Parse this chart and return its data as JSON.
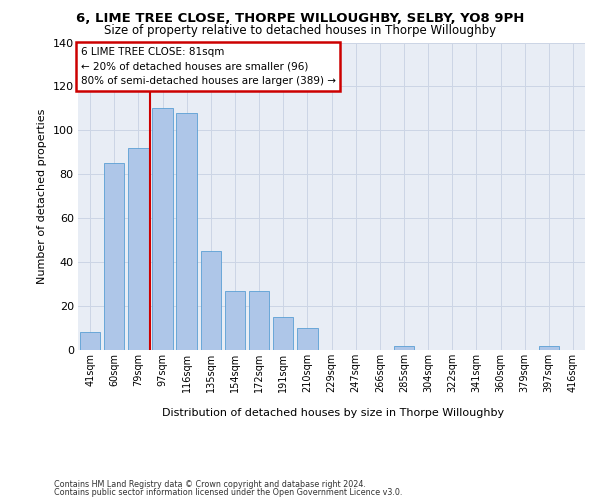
{
  "title_line1": "6, LIME TREE CLOSE, THORPE WILLOUGHBY, SELBY, YO8 9PH",
  "title_line2": "Size of property relative to detached houses in Thorpe Willoughby",
  "xlabel": "Distribution of detached houses by size in Thorpe Willoughby",
  "ylabel": "Number of detached properties",
  "categories": [
    "41sqm",
    "60sqm",
    "79sqm",
    "97sqm",
    "116sqm",
    "135sqm",
    "154sqm",
    "172sqm",
    "191sqm",
    "210sqm",
    "229sqm",
    "247sqm",
    "266sqm",
    "285sqm",
    "304sqm",
    "322sqm",
    "341sqm",
    "360sqm",
    "379sqm",
    "397sqm",
    "416sqm"
  ],
  "values": [
    8,
    85,
    92,
    110,
    108,
    45,
    27,
    27,
    15,
    10,
    0,
    0,
    0,
    2,
    0,
    0,
    0,
    0,
    0,
    2,
    0
  ],
  "bar_color": "#aec6e8",
  "bar_edge_color": "#5a9fd4",
  "grid_color": "#ccd5e5",
  "bg_color": "#e8edf5",
  "vline_color": "#cc0000",
  "annotation_line1": "6 LIME TREE CLOSE: 81sqm",
  "annotation_line2": "← 20% of detached houses are smaller (96)",
  "annotation_line3": "80% of semi-detached houses are larger (389) →",
  "annotation_box_edgecolor": "#cc0000",
  "ylim_max": 140,
  "yticks": [
    0,
    20,
    40,
    60,
    80,
    100,
    120,
    140
  ],
  "footnote1": "Contains HM Land Registry data © Crown copyright and database right 2024.",
  "footnote2": "Contains public sector information licensed under the Open Government Licence v3.0."
}
